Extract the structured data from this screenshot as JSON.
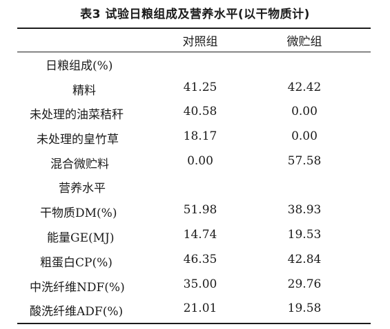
{
  "table": {
    "caption": "表3  试验日粮组成及营养水平(以干物质计)",
    "columns": [
      "对照组",
      "微贮组"
    ],
    "rows": [
      {
        "label": "日粮组成(%)",
        "v1": "",
        "v2": ""
      },
      {
        "label": "精料",
        "v1": "41.25",
        "v2": "42.42"
      },
      {
        "label": "未处理的油菜秸秆",
        "v1": "40.58",
        "v2": "0.00"
      },
      {
        "label": "未处理的皇竹草",
        "v1": "18.17",
        "v2": "0.00"
      },
      {
        "label": "混合微贮料",
        "v1": "0.00",
        "v2": "57.58"
      },
      {
        "label": "营养水平",
        "v1": "",
        "v2": ""
      },
      {
        "label": "干物质DM(%)",
        "v1": "51.98",
        "v2": "38.93"
      },
      {
        "label": "能量GE(MJ)",
        "v1": "14.74",
        "v2": "19.53"
      },
      {
        "label": "粗蛋白CP(%)",
        "v1": "46.35",
        "v2": "42.84"
      },
      {
        "label": "中洗纤维NDF(%)",
        "v1": "35.00",
        "v2": "29.76"
      },
      {
        "label": "酸洗纤维ADF(%)",
        "v1": "21.01",
        "v2": "19.58"
      }
    ]
  }
}
